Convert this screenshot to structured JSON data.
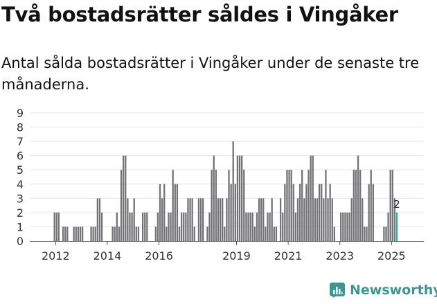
{
  "header": {
    "title": "Två bostadsrätter såldes i Vingåker",
    "subtitle": "Antal sålda bostadsrätter i Vingåker under de senaste tre månaderna."
  },
  "chart_data": {
    "type": "bar",
    "title": "Två bostadsrätter såldes i Vingåker",
    "subtitle": "Antal sålda bostadsrätter i Vingåker under de senaste tre månaderna.",
    "xlabel": "",
    "ylabel": "",
    "ylim": [
      0,
      9
    ],
    "yticks": [
      0,
      1,
      2,
      3,
      4,
      5,
      6,
      7,
      8,
      9
    ],
    "x_start": "2011-01",
    "x_end": "2026-04",
    "xticks": [
      {
        "label": "2012",
        "month": "2012-01"
      },
      {
        "label": "2014",
        "month": "2014-01"
      },
      {
        "label": "2016",
        "month": "2016-01"
      },
      {
        "label": "2019",
        "month": "2019-01"
      },
      {
        "label": "2021",
        "month": "2021-01"
      },
      {
        "label": "2023",
        "month": "2023-01"
      },
      {
        "label": "2025",
        "month": "2025-01"
      }
    ],
    "grid": true,
    "colors": {
      "bars": "#737277",
      "highlight": "#3aa79a",
      "grid": "#e6e6e6",
      "axis": "#555555"
    },
    "series": [
      {
        "name": "Sålda bostadsrätter",
        "start_month": "2011-12",
        "values": [
          2,
          2,
          2,
          0,
          1,
          1,
          1,
          0,
          0,
          1,
          1,
          1,
          1,
          1,
          0,
          0,
          0,
          1,
          1,
          1,
          3,
          3,
          2,
          0,
          0,
          0,
          0,
          1,
          1,
          2,
          1,
          5,
          6,
          6,
          3,
          2,
          2,
          3,
          1,
          1,
          0,
          2,
          2,
          2,
          0,
          0,
          0,
          1,
          2,
          4,
          3,
          4,
          1,
          2,
          2,
          5,
          4,
          4,
          1,
          2,
          2,
          2,
          3,
          3,
          3,
          1,
          0,
          3,
          3,
          3,
          0,
          1,
          2,
          5,
          6,
          5,
          3,
          3,
          3,
          1,
          3,
          5,
          4,
          7,
          4,
          6,
          6,
          6,
          5,
          2,
          2,
          2,
          2,
          1,
          2,
          3,
          3,
          3,
          1,
          2,
          2,
          3,
          1,
          1,
          0,
          3,
          2,
          4,
          5,
          5,
          5,
          4,
          2,
          3,
          4,
          5,
          3,
          4,
          5,
          6,
          6,
          3,
          3,
          4,
          4,
          3,
          5,
          3,
          4,
          3,
          1,
          0,
          0,
          2,
          2,
          2,
          2,
          2,
          3,
          5,
          5,
          6,
          5,
          3,
          1,
          1,
          4,
          5,
          4,
          0,
          0,
          0,
          0,
          1,
          1,
          2,
          5,
          5,
          3,
          2
        ],
        "last_value_label": "2"
      }
    ]
  },
  "brand": {
    "name": "Newsworthy",
    "icon": "bar-chart-icon",
    "color": "#3d9690"
  }
}
